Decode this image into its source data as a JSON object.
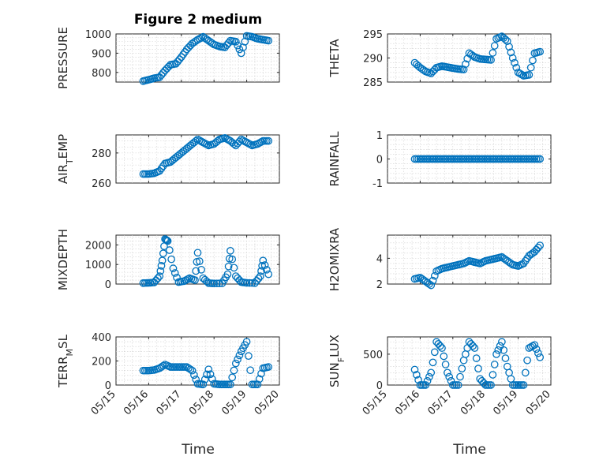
{
  "figure_title": "Figure 2 medium",
  "marker_color": "#0072BD",
  "chart_data": [
    {
      "type": "scatter",
      "title": "Figure 2 medium",
      "ylabel": "PRESSURE",
      "xlabel": "",
      "ylim": [
        750,
        1000
      ],
      "yticks": [
        800,
        900,
        1000
      ],
      "xlim": [
        "05/15",
        "05/20"
      ],
      "grid": true,
      "x": [
        "05/15 20:00",
        "05/16 00:00",
        "05/16 04:00",
        "05/16 08:00",
        "05/16 12:00",
        "05/16 16:00",
        "05/16 20:00",
        "05/17 00:00",
        "05/17 04:00",
        "05/17 08:00",
        "05/17 12:00",
        "05/17 16:00",
        "05/17 20:00",
        "05/18 00:00",
        "05/18 04:00",
        "05/18 08:00",
        "05/18 12:00",
        "05/18 16:00",
        "05/18 20:00",
        "05/19 00:00",
        "05/19 04:00",
        "05/19 08:00",
        "05/19 12:00",
        "05/19 16:00"
      ],
      "y": [
        755,
        762,
        770,
        775,
        810,
        840,
        845,
        880,
        920,
        950,
        970,
        985,
        965,
        945,
        935,
        930,
        965,
        960,
        900,
        990,
        985,
        975,
        970,
        965
      ]
    },
    {
      "type": "scatter",
      "ylabel": "THETA",
      "ylim": [
        285,
        295
      ],
      "yticks": [
        285,
        290,
        295
      ],
      "xlim": [
        "05/15",
        "05/20"
      ],
      "grid": true,
      "x": [
        "05/15 20:00",
        "05/16 00:00",
        "05/16 04:00",
        "05/16 08:00",
        "05/16 12:00",
        "05/16 16:00",
        "05/16 20:00",
        "05/17 00:00",
        "05/17 04:00",
        "05/17 08:00",
        "05/17 12:00",
        "05/17 16:00",
        "05/17 20:00",
        "05/18 00:00",
        "05/18 04:00",
        "05/18 08:00",
        "05/18 12:00",
        "05/18 16:00",
        "05/18 20:00",
        "05/19 00:00",
        "05/19 04:00",
        "05/19 08:00",
        "05/19 12:00",
        "05/19 16:00"
      ],
      "y": [
        289,
        288,
        287.2,
        286.8,
        288,
        288.3,
        288.1,
        287.9,
        287.7,
        287.6,
        291,
        290.2,
        289.8,
        289.7,
        289.6,
        294,
        294.5,
        293.5,
        290,
        287,
        286.3,
        286.5,
        291,
        291.3
      ]
    },
    {
      "type": "scatter",
      "ylabel": "AIR_TEMP",
      "ylim": [
        260,
        292
      ],
      "yticks": [
        260,
        280
      ],
      "xlim": [
        "05/15",
        "05/20"
      ],
      "grid": true,
      "x": [
        "05/15 20:00",
        "05/16 00:00",
        "05/16 04:00",
        "05/16 08:00",
        "05/16 12:00",
        "05/16 16:00",
        "05/16 20:00",
        "05/17 00:00",
        "05/17 04:00",
        "05/17 08:00",
        "05/17 12:00",
        "05/17 16:00",
        "05/17 20:00",
        "05/18 00:00",
        "05/18 04:00",
        "05/18 08:00",
        "05/18 12:00",
        "05/18 16:00",
        "05/18 20:00",
        "05/19 00:00",
        "05/19 04:00",
        "05/19 08:00",
        "05/19 12:00",
        "05/19 16:00"
      ],
      "y": [
        266,
        266,
        266.5,
        268,
        273,
        274,
        277,
        280,
        283,
        286,
        289,
        287,
        285,
        286,
        289,
        290,
        288,
        285,
        289,
        287,
        285,
        286,
        288,
        288
      ]
    },
    {
      "type": "scatter",
      "ylabel": "RAINFALL",
      "ylim": [
        -1,
        1
      ],
      "yticks": [
        -1,
        0,
        1
      ],
      "xlim": [
        "05/15",
        "05/20"
      ],
      "grid": true,
      "x": [
        "05/15 20:00",
        "05/16 00:00",
        "05/16 04:00",
        "05/16 08:00",
        "05/16 12:00",
        "05/16 16:00",
        "05/16 20:00",
        "05/17 00:00",
        "05/17 04:00",
        "05/17 08:00",
        "05/17 12:00",
        "05/17 16:00",
        "05/17 20:00",
        "05/18 00:00",
        "05/18 04:00",
        "05/18 08:00",
        "05/18 12:00",
        "05/18 16:00",
        "05/18 20:00",
        "05/19 00:00",
        "05/19 04:00",
        "05/19 08:00",
        "05/19 12:00",
        "05/19 16:00"
      ],
      "y": [
        0,
        0,
        0,
        0,
        0,
        0,
        0,
        0,
        0,
        0,
        0,
        0,
        0,
        0,
        0,
        0,
        0,
        0,
        0,
        0,
        0,
        0,
        0,
        0
      ]
    },
    {
      "type": "scatter",
      "ylabel": "MIXDEPTH",
      "ylim": [
        0,
        2500
      ],
      "yticks": [
        0,
        1000,
        2000
      ],
      "xlim": [
        "05/15",
        "05/20"
      ],
      "grid": true,
      "x": [
        "05/15 20:00",
        "05/16 00:00",
        "05/16 04:00",
        "05/16 08:00",
        "05/16 10:00",
        "05/16 12:00",
        "05/16 14:00",
        "05/16 18:00",
        "05/16 22:00",
        "05/17 02:00",
        "05/17 06:00",
        "05/17 10:00",
        "05/17 12:00",
        "05/17 16:00",
        "05/17 20:00",
        "05/18 00:00",
        "05/18 06:00",
        "05/18 10:00",
        "05/18 12:00",
        "05/18 16:00",
        "05/18 20:00",
        "05/19 00:00",
        "05/19 06:00",
        "05/19 10:00",
        "05/19 12:00",
        "05/19 16:00"
      ],
      "y": [
        50,
        60,
        80,
        400,
        1200,
        2300,
        2200,
        800,
        100,
        150,
        300,
        200,
        1600,
        300,
        50,
        30,
        40,
        500,
        1700,
        400,
        100,
        60,
        50,
        400,
        1200,
        500
      ]
    },
    {
      "type": "scatter",
      "ylabel": "H2OMIXRA",
      "ylim": [
        2,
        5.8
      ],
      "yticks": [
        2,
        4
      ],
      "xlim": [
        "05/15",
        "05/20"
      ],
      "grid": true,
      "x": [
        "05/15 20:00",
        "05/16 00:00",
        "05/16 04:00",
        "05/16 08:00",
        "05/16 12:00",
        "05/16 16:00",
        "05/16 20:00",
        "05/17 00:00",
        "05/17 04:00",
        "05/17 08:00",
        "05/17 12:00",
        "05/17 16:00",
        "05/17 20:00",
        "05/18 00:00",
        "05/18 04:00",
        "05/18 08:00",
        "05/18 12:00",
        "05/18 16:00",
        "05/18 20:00",
        "05/19 00:00",
        "05/19 04:00",
        "05/19 08:00",
        "05/19 12:00",
        "05/19 16:00"
      ],
      "y": [
        2.4,
        2.5,
        2.2,
        1.9,
        3.0,
        3.2,
        3.3,
        3.4,
        3.5,
        3.6,
        3.8,
        3.7,
        3.6,
        3.8,
        3.9,
        4.0,
        4.1,
        3.8,
        3.5,
        3.4,
        3.6,
        4.2,
        4.5,
        5.0
      ]
    },
    {
      "type": "scatter",
      "ylabel": "TERR_MSL",
      "ylim": [
        0,
        400
      ],
      "yticks": [
        0,
        200,
        400
      ],
      "xlim": [
        "05/15",
        "05/20"
      ],
      "grid": true,
      "x": [
        "05/15 20:00",
        "05/16 00:00",
        "05/16 04:00",
        "05/16 08:00",
        "05/16 12:00",
        "05/16 16:00",
        "05/16 20:00",
        "05/17 00:00",
        "05/17 04:00",
        "05/17 08:00",
        "05/17 12:00",
        "05/17 16:00",
        "05/17 20:00",
        "05/18 00:00",
        "05/18 04:00",
        "05/18 08:00",
        "05/18 12:00",
        "05/18 16:00",
        "05/18 20:00",
        "05/19 00:00",
        "05/19 04:00",
        "05/19 08:00",
        "05/19 12:00",
        "05/19 16:00"
      ],
      "y": [
        120,
        120,
        125,
        140,
        170,
        150,
        150,
        150,
        150,
        120,
        10,
        5,
        130,
        10,
        5,
        5,
        5,
        180,
        280,
        360,
        5,
        5,
        140,
        150
      ]
    },
    {
      "type": "scatter",
      "ylabel": "SUN_FLUX",
      "ylim": [
        0,
        780
      ],
      "yticks": [
        0,
        500
      ],
      "xlim": [
        "05/15",
        "05/20"
      ],
      "grid": true,
      "x": [
        "05/15 20:00",
        "05/16 00:00",
        "05/16 04:00",
        "05/16 08:00",
        "05/16 12:00",
        "05/16 16:00",
        "05/16 20:00",
        "05/17 00:00",
        "05/17 04:00",
        "05/17 08:00",
        "05/17 12:00",
        "05/17 16:00",
        "05/17 20:00",
        "05/18 00:00",
        "05/18 04:00",
        "05/18 08:00",
        "05/18 12:00",
        "05/18 16:00",
        "05/18 20:00",
        "05/19 00:00",
        "05/19 04:00",
        "05/19 08:00",
        "05/19 12:00",
        "05/19 16:00"
      ],
      "y": [
        250,
        0,
        0,
        200,
        700,
        600,
        200,
        0,
        0,
        400,
        700,
        600,
        100,
        0,
        0,
        500,
        700,
        300,
        0,
        0,
        0,
        600,
        650,
        450
      ]
    }
  ],
  "x_ticklabels": [
    "05/15",
    "05/16",
    "05/17",
    "05/18",
    "05/19",
    "05/20"
  ],
  "x_axis_label": "Time"
}
